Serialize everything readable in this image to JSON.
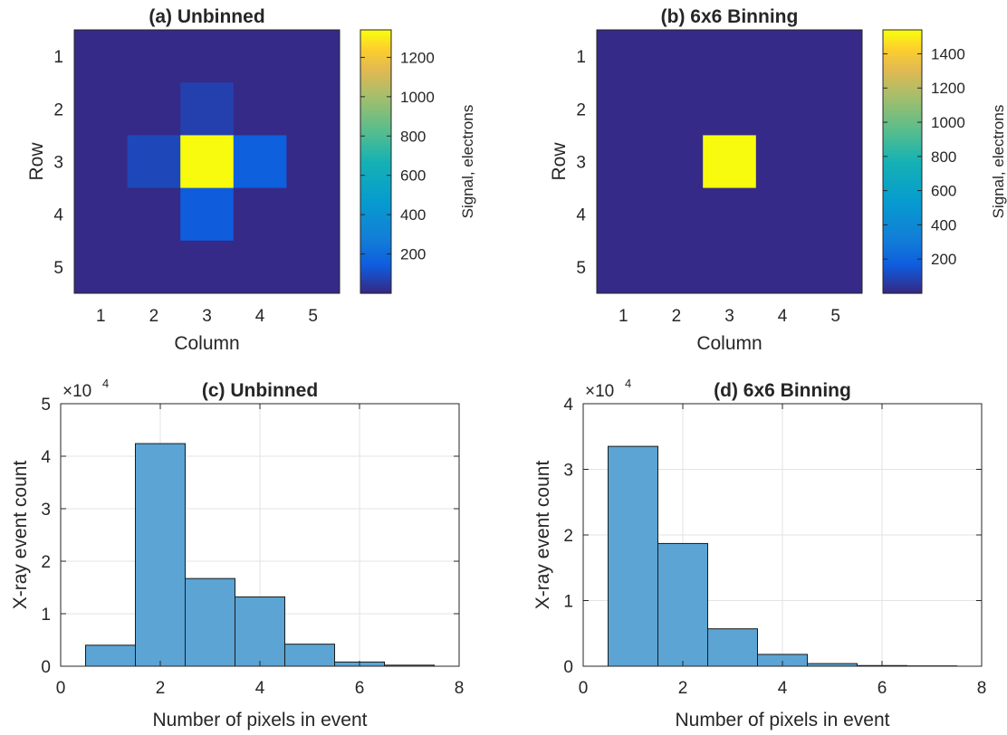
{
  "chart_data": [
    {
      "type": "heatmap",
      "title": "(a) Unbinned",
      "xlabel": "Column",
      "ylabel": "Row",
      "x_ticks": [
        "1",
        "2",
        "3",
        "4",
        "5"
      ],
      "y_ticks": [
        "1",
        "2",
        "3",
        "4",
        "5"
      ],
      "values": [
        [
          0,
          0,
          0,
          0,
          0
        ],
        [
          0,
          0,
          60,
          0,
          0
        ],
        [
          0,
          80,
          1340,
          150,
          0
        ],
        [
          0,
          0,
          140,
          0,
          0
        ],
        [
          0,
          0,
          0,
          0,
          0
        ]
      ],
      "colorbar": {
        "label": "Signal, electrons",
        "range": [
          0,
          1340
        ],
        "ticks": [
          "200",
          "400",
          "600",
          "800",
          "1000",
          "1200"
        ]
      },
      "colormap": "parula"
    },
    {
      "type": "heatmap",
      "title": "(b) 6x6 Binning",
      "xlabel": "Column",
      "ylabel": "Row",
      "x_ticks": [
        "1",
        "2",
        "3",
        "4",
        "5"
      ],
      "y_ticks": [
        "1",
        "2",
        "3",
        "4",
        "5"
      ],
      "values": [
        [
          0,
          0,
          0,
          0,
          0
        ],
        [
          0,
          0,
          0,
          0,
          0
        ],
        [
          0,
          0,
          1540,
          0,
          0
        ],
        [
          0,
          0,
          0,
          0,
          0
        ],
        [
          0,
          0,
          0,
          0,
          0
        ]
      ],
      "colorbar": {
        "label": "Signal, electrons",
        "range": [
          0,
          1540
        ],
        "ticks": [
          "200",
          "400",
          "600",
          "800",
          "1000",
          "1200",
          "1400"
        ]
      },
      "colormap": "parula"
    },
    {
      "type": "bar",
      "title": "(c) Unbinned",
      "xlabel": "Number of pixels in event",
      "ylabel": "X-ray event count",
      "x": [
        1,
        2,
        3,
        4,
        5,
        6,
        7
      ],
      "values": [
        4000,
        42400,
        16700,
        13200,
        4200,
        800,
        200
      ],
      "xlim": [
        0,
        8
      ],
      "ylim": [
        0,
        50000
      ],
      "x_ticks": [
        "0",
        "2",
        "4",
        "6",
        "8"
      ],
      "y_ticks": [
        "0",
        "1",
        "2",
        "3",
        "4",
        "5"
      ],
      "y_multiplier": "×10",
      "y_multiplier_exp": "4",
      "grid": true,
      "bar_color": "#5ba4d4"
    },
    {
      "type": "bar",
      "title": "(d) 6x6 Binning",
      "xlabel": "Number of pixels in event",
      "ylabel": "X-ray event count",
      "x": [
        1,
        2,
        3,
        4,
        5,
        6,
        7
      ],
      "values": [
        33500,
        18700,
        5700,
        1800,
        400,
        100,
        50
      ],
      "xlim": [
        0,
        8
      ],
      "ylim": [
        0,
        40000
      ],
      "x_ticks": [
        "0",
        "2",
        "4",
        "6",
        "8"
      ],
      "y_ticks": [
        "0",
        "1",
        "2",
        "3",
        "4"
      ],
      "y_multiplier": "×10",
      "y_multiplier_exp": "4",
      "grid": true,
      "bar_color": "#5ba4d4"
    }
  ]
}
